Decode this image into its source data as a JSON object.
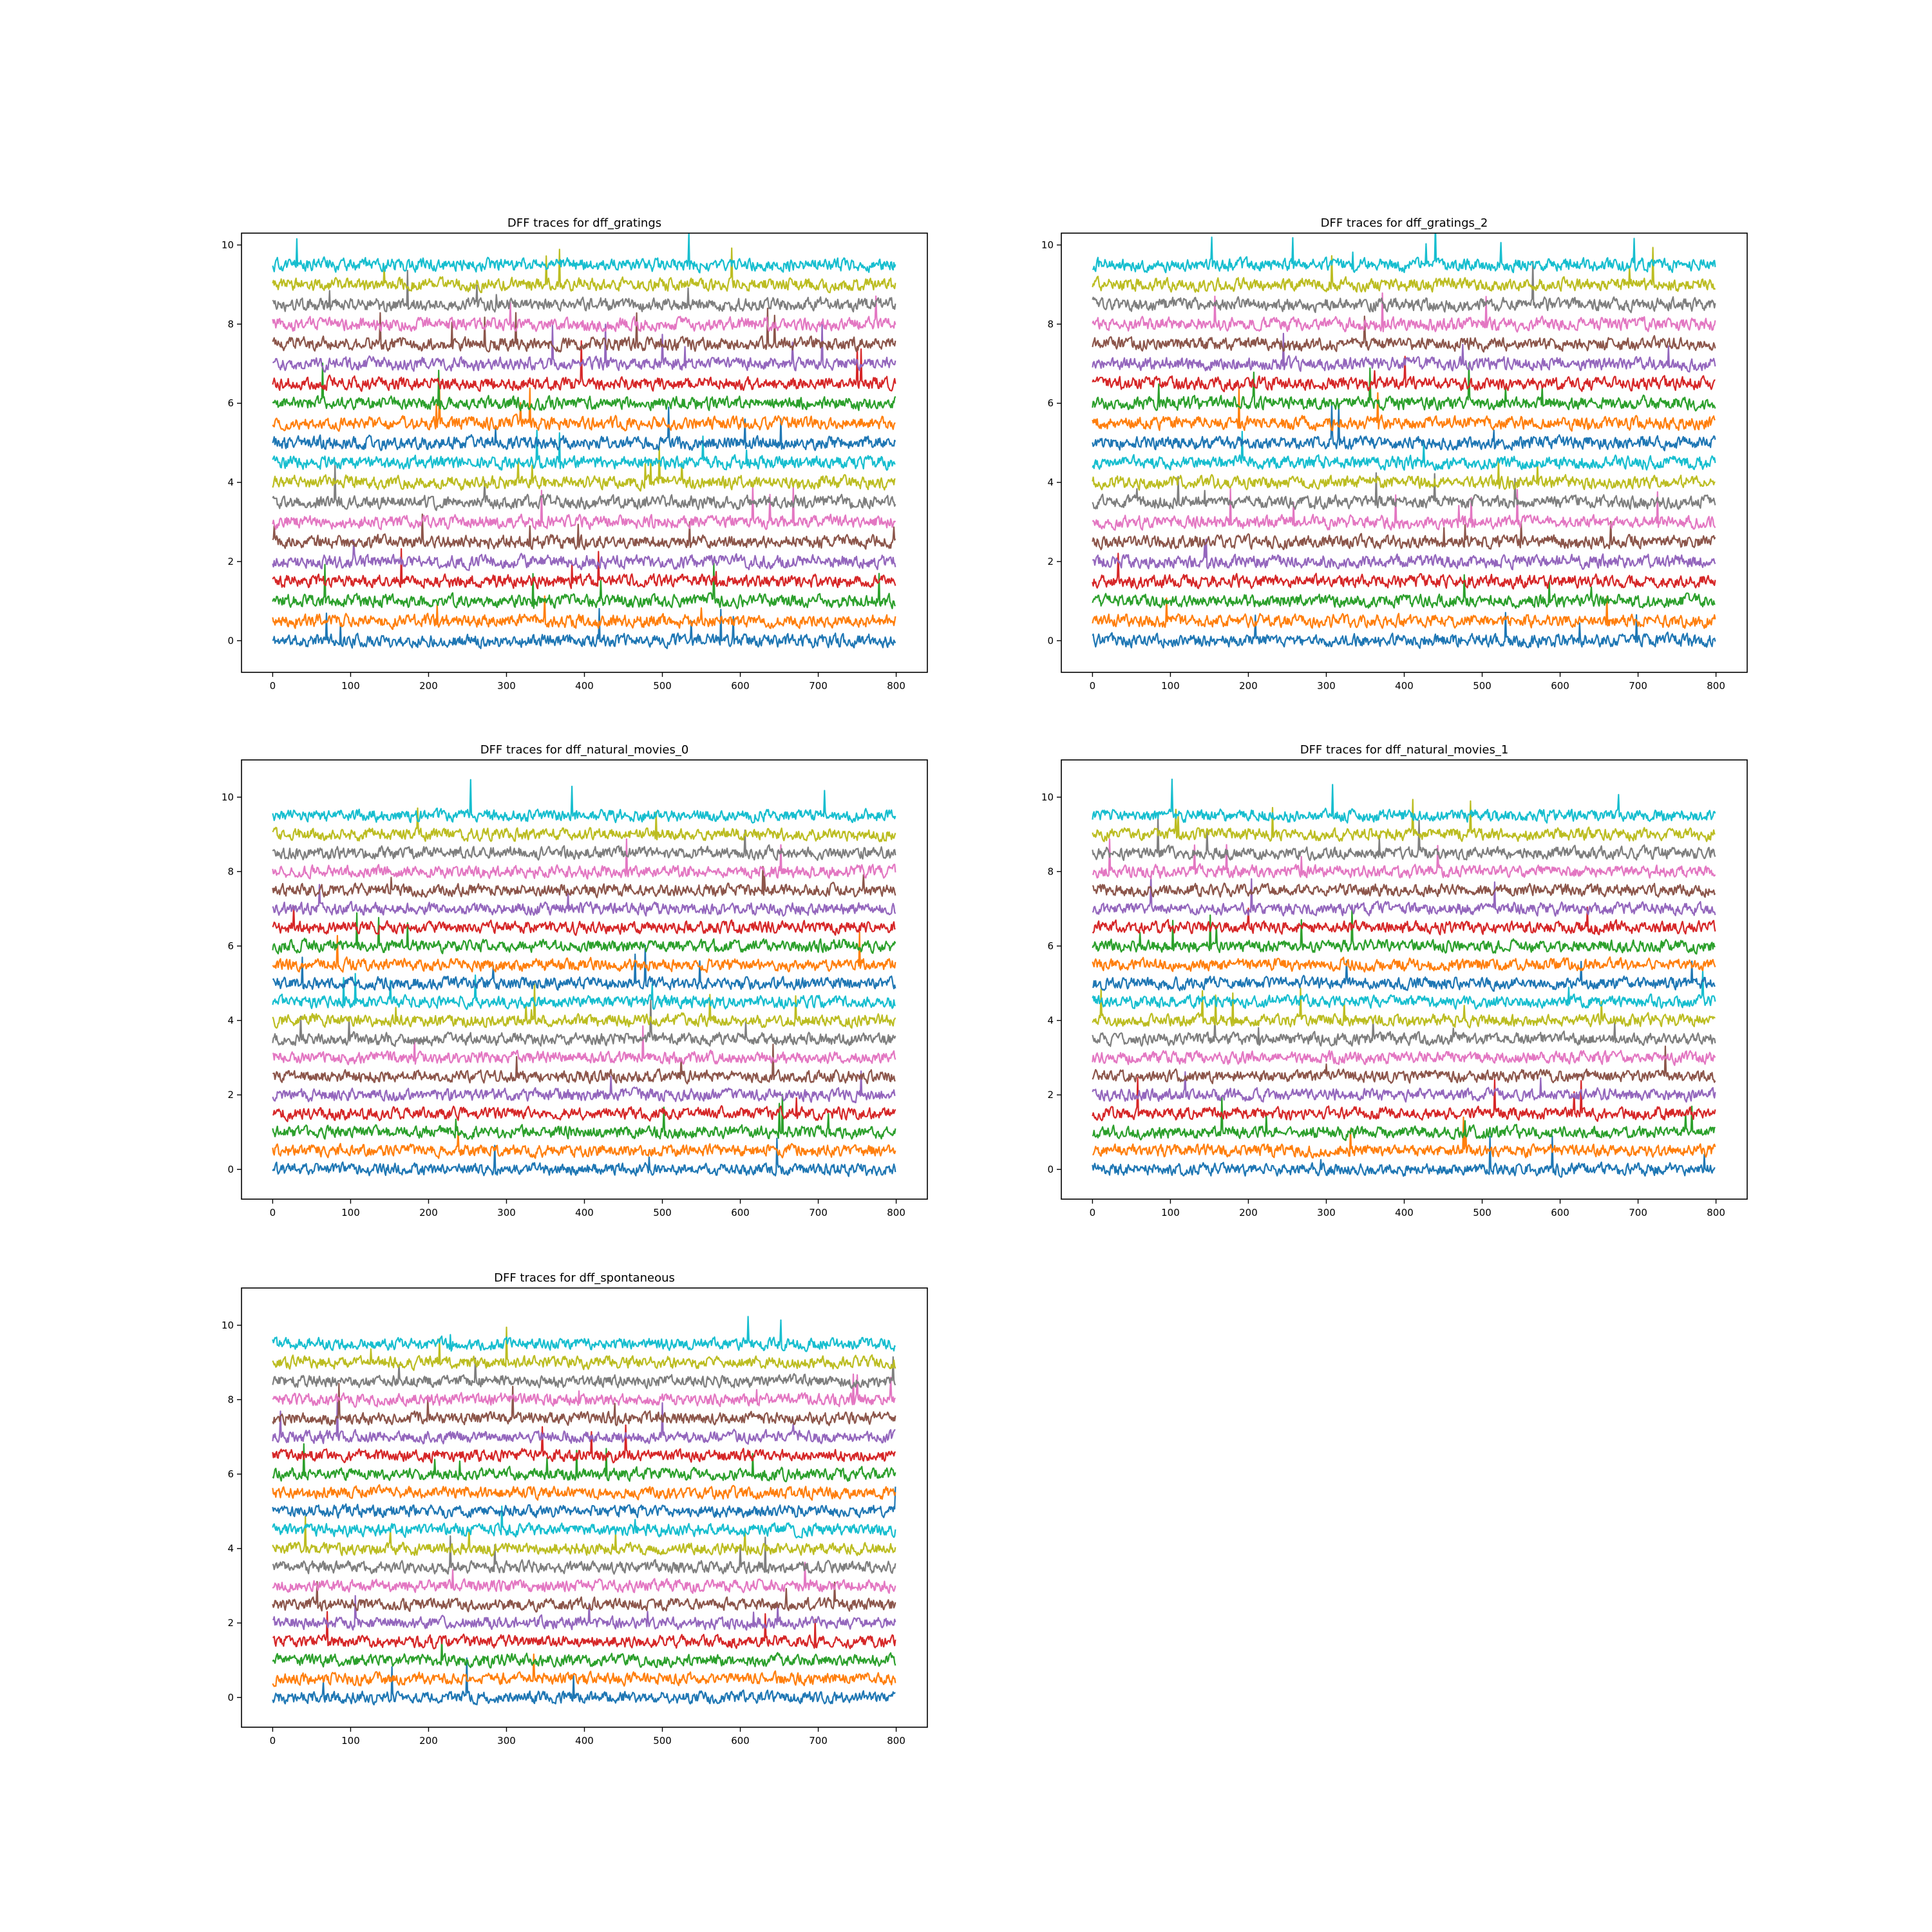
{
  "chart_data": [
    {
      "type": "line",
      "title": "DFF traces for dff_gratings",
      "xlim": [
        -40,
        840
      ],
      "ylim": [
        -0.8,
        10.3
      ],
      "xticks": [
        0,
        100,
        200,
        300,
        400,
        500,
        600,
        700,
        800
      ],
      "yticks": [
        0,
        2,
        4,
        6,
        8,
        10
      ],
      "n_points": 800,
      "series_offset_step": 0.5,
      "series": [
        {
          "offset": 0.0,
          "color": "#1f77b4"
        },
        {
          "offset": 0.5,
          "color": "#ff7f0e"
        },
        {
          "offset": 1.0,
          "color": "#2ca02c"
        },
        {
          "offset": 1.5,
          "color": "#d62728"
        },
        {
          "offset": 2.0,
          "color": "#9467bd"
        },
        {
          "offset": 2.5,
          "color": "#8c564b"
        },
        {
          "offset": 3.0,
          "color": "#e377c2"
        },
        {
          "offset": 3.5,
          "color": "#7f7f7f"
        },
        {
          "offset": 4.0,
          "color": "#bcbd22"
        },
        {
          "offset": 4.5,
          "color": "#17becf"
        },
        {
          "offset": 5.0,
          "color": "#1f77b4"
        },
        {
          "offset": 5.5,
          "color": "#ff7f0e"
        },
        {
          "offset": 6.0,
          "color": "#2ca02c"
        },
        {
          "offset": 6.5,
          "color": "#d62728"
        },
        {
          "offset": 7.0,
          "color": "#9467bd"
        },
        {
          "offset": 7.5,
          "color": "#8c564b"
        },
        {
          "offset": 8.0,
          "color": "#e377c2"
        },
        {
          "offset": 8.5,
          "color": "#7f7f7f"
        },
        {
          "offset": 9.0,
          "color": "#bcbd22"
        },
        {
          "offset": 9.5,
          "color": "#17becf"
        }
      ]
    },
    {
      "type": "line",
      "title": "DFF traces for dff_gratings_2",
      "xlim": [
        -40,
        840
      ],
      "ylim": [
        -0.8,
        10.3
      ],
      "xticks": [
        0,
        100,
        200,
        300,
        400,
        500,
        600,
        700,
        800
      ],
      "yticks": [
        0,
        2,
        4,
        6,
        8,
        10
      ],
      "n_points": 800,
      "series_offset_step": 0.5,
      "series": [
        {
          "offset": 0.0,
          "color": "#1f77b4"
        },
        {
          "offset": 0.5,
          "color": "#ff7f0e"
        },
        {
          "offset": 1.0,
          "color": "#2ca02c"
        },
        {
          "offset": 1.5,
          "color": "#d62728"
        },
        {
          "offset": 2.0,
          "color": "#9467bd"
        },
        {
          "offset": 2.5,
          "color": "#8c564b"
        },
        {
          "offset": 3.0,
          "color": "#e377c2"
        },
        {
          "offset": 3.5,
          "color": "#7f7f7f"
        },
        {
          "offset": 4.0,
          "color": "#bcbd22"
        },
        {
          "offset": 4.5,
          "color": "#17becf"
        },
        {
          "offset": 5.0,
          "color": "#1f77b4"
        },
        {
          "offset": 5.5,
          "color": "#ff7f0e"
        },
        {
          "offset": 6.0,
          "color": "#2ca02c"
        },
        {
          "offset": 6.5,
          "color": "#d62728"
        },
        {
          "offset": 7.0,
          "color": "#9467bd"
        },
        {
          "offset": 7.5,
          "color": "#8c564b"
        },
        {
          "offset": 8.0,
          "color": "#e377c2"
        },
        {
          "offset": 8.5,
          "color": "#7f7f7f"
        },
        {
          "offset": 9.0,
          "color": "#bcbd22"
        },
        {
          "offset": 9.5,
          "color": "#17becf"
        }
      ]
    },
    {
      "type": "line",
      "title": "DFF traces for dff_natural_movies_0",
      "xlim": [
        -40,
        840
      ],
      "ylim": [
        -0.8,
        11.0
      ],
      "xticks": [
        0,
        100,
        200,
        300,
        400,
        500,
        600,
        700,
        800
      ],
      "yticks": [
        0,
        2,
        4,
        6,
        8,
        10
      ],
      "n_points": 800,
      "series_offset_step": 0.5,
      "series": [
        {
          "offset": 0.0,
          "color": "#1f77b4"
        },
        {
          "offset": 0.5,
          "color": "#ff7f0e"
        },
        {
          "offset": 1.0,
          "color": "#2ca02c"
        },
        {
          "offset": 1.5,
          "color": "#d62728"
        },
        {
          "offset": 2.0,
          "color": "#9467bd"
        },
        {
          "offset": 2.5,
          "color": "#8c564b"
        },
        {
          "offset": 3.0,
          "color": "#e377c2"
        },
        {
          "offset": 3.5,
          "color": "#7f7f7f"
        },
        {
          "offset": 4.0,
          "color": "#bcbd22"
        },
        {
          "offset": 4.5,
          "color": "#17becf"
        },
        {
          "offset": 5.0,
          "color": "#1f77b4"
        },
        {
          "offset": 5.5,
          "color": "#ff7f0e"
        },
        {
          "offset": 6.0,
          "color": "#2ca02c"
        },
        {
          "offset": 6.5,
          "color": "#d62728"
        },
        {
          "offset": 7.0,
          "color": "#9467bd"
        },
        {
          "offset": 7.5,
          "color": "#8c564b"
        },
        {
          "offset": 8.0,
          "color": "#e377c2"
        },
        {
          "offset": 8.5,
          "color": "#7f7f7f"
        },
        {
          "offset": 9.0,
          "color": "#bcbd22"
        },
        {
          "offset": 9.5,
          "color": "#17becf"
        }
      ]
    },
    {
      "type": "line",
      "title": "DFF traces for dff_natural_movies_1",
      "xlim": [
        -40,
        840
      ],
      "ylim": [
        -0.8,
        11.0
      ],
      "xticks": [
        0,
        100,
        200,
        300,
        400,
        500,
        600,
        700,
        800
      ],
      "yticks": [
        0,
        2,
        4,
        6,
        8,
        10
      ],
      "n_points": 800,
      "series_offset_step": 0.5,
      "series": [
        {
          "offset": 0.0,
          "color": "#1f77b4"
        },
        {
          "offset": 0.5,
          "color": "#ff7f0e"
        },
        {
          "offset": 1.0,
          "color": "#2ca02c"
        },
        {
          "offset": 1.5,
          "color": "#d62728"
        },
        {
          "offset": 2.0,
          "color": "#9467bd"
        },
        {
          "offset": 2.5,
          "color": "#8c564b"
        },
        {
          "offset": 3.0,
          "color": "#e377c2"
        },
        {
          "offset": 3.5,
          "color": "#7f7f7f"
        },
        {
          "offset": 4.0,
          "color": "#bcbd22"
        },
        {
          "offset": 4.5,
          "color": "#17becf"
        },
        {
          "offset": 5.0,
          "color": "#1f77b4"
        },
        {
          "offset": 5.5,
          "color": "#ff7f0e"
        },
        {
          "offset": 6.0,
          "color": "#2ca02c"
        },
        {
          "offset": 6.5,
          "color": "#d62728"
        },
        {
          "offset": 7.0,
          "color": "#9467bd"
        },
        {
          "offset": 7.5,
          "color": "#8c564b"
        },
        {
          "offset": 8.0,
          "color": "#e377c2"
        },
        {
          "offset": 8.5,
          "color": "#7f7f7f"
        },
        {
          "offset": 9.0,
          "color": "#bcbd22"
        },
        {
          "offset": 9.5,
          "color": "#17becf"
        }
      ]
    },
    {
      "type": "line",
      "title": "DFF traces for dff_spontaneous",
      "xlim": [
        -40,
        840
      ],
      "ylim": [
        -0.8,
        11.0
      ],
      "xticks": [
        0,
        100,
        200,
        300,
        400,
        500,
        600,
        700,
        800
      ],
      "yticks": [
        0,
        2,
        4,
        6,
        8,
        10
      ],
      "n_points": 800,
      "series_offset_step": 0.5,
      "series": [
        {
          "offset": 0.0,
          "color": "#1f77b4"
        },
        {
          "offset": 0.5,
          "color": "#ff7f0e"
        },
        {
          "offset": 1.0,
          "color": "#2ca02c"
        },
        {
          "offset": 1.5,
          "color": "#d62728"
        },
        {
          "offset": 2.0,
          "color": "#9467bd"
        },
        {
          "offset": 2.5,
          "color": "#8c564b"
        },
        {
          "offset": 3.0,
          "color": "#e377c2"
        },
        {
          "offset": 3.5,
          "color": "#7f7f7f"
        },
        {
          "offset": 4.0,
          "color": "#bcbd22"
        },
        {
          "offset": 4.5,
          "color": "#17becf"
        },
        {
          "offset": 5.0,
          "color": "#1f77b4"
        },
        {
          "offset": 5.5,
          "color": "#ff7f0e"
        },
        {
          "offset": 6.0,
          "color": "#2ca02c"
        },
        {
          "offset": 6.5,
          "color": "#d62728"
        },
        {
          "offset": 7.0,
          "color": "#9467bd"
        },
        {
          "offset": 7.5,
          "color": "#8c564b"
        },
        {
          "offset": 8.0,
          "color": "#e377c2"
        },
        {
          "offset": 8.5,
          "color": "#7f7f7f"
        },
        {
          "offset": 9.0,
          "color": "#bcbd22"
        },
        {
          "offset": 9.5,
          "color": "#17becf"
        }
      ]
    }
  ]
}
